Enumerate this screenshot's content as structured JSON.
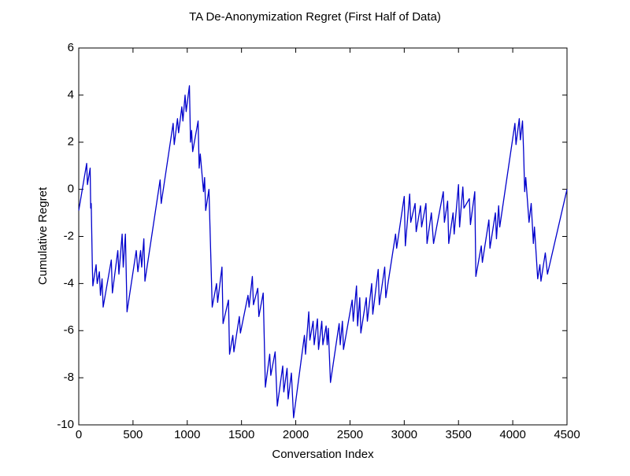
{
  "chart_data": {
    "type": "line",
    "title": "TA De-Anonymization Regret (First Half of Data)",
    "xlabel": "Conversation Index",
    "ylabel": "Cumulative Regret",
    "color": "#0000cc",
    "xlim": [
      0,
      4500
    ],
    "ylim": [
      -10,
      6
    ],
    "xticks": [
      0,
      500,
      1000,
      1500,
      2000,
      2500,
      3000,
      3500,
      4000,
      4500
    ],
    "yticks": [
      -10,
      -8,
      -6,
      -4,
      -2,
      0,
      2,
      4,
      6
    ],
    "x": [
      0,
      73,
      80,
      105,
      110,
      115,
      125,
      130,
      160,
      170,
      190,
      200,
      215,
      225,
      300,
      310,
      360,
      370,
      400,
      410,
      430,
      445,
      530,
      545,
      570,
      580,
      600,
      610,
      750,
      760,
      870,
      880,
      910,
      920,
      950,
      960,
      980,
      990,
      1020,
      1030,
      1040,
      1050,
      1100,
      1110,
      1120,
      1150,
      1160,
      1170,
      1200,
      1230,
      1270,
      1280,
      1320,
      1330,
      1380,
      1390,
      1420,
      1430,
      1480,
      1490,
      1560,
      1570,
      1600,
      1610,
      1650,
      1660,
      1700,
      1720,
      1760,
      1770,
      1810,
      1830,
      1880,
      1890,
      1920,
      1930,
      1960,
      1980,
      2080,
      2090,
      2120,
      2130,
      2160,
      2170,
      2200,
      2210,
      2240,
      2250,
      2280,
      2290,
      2300,
      2320,
      2400,
      2410,
      2430,
      2440,
      2520,
      2530,
      2560,
      2570,
      2590,
      2600,
      2650,
      2660,
      2700,
      2710,
      2760,
      2770,
      2820,
      2830,
      2920,
      2930,
      3000,
      3010,
      3050,
      3060,
      3100,
      3110,
      3150,
      3160,
      3200,
      3210,
      3250,
      3270,
      3360,
      3370,
      3400,
      3410,
      3450,
      3460,
      3500,
      3510,
      3540,
      3550,
      3600,
      3610,
      3650,
      3660,
      3710,
      3720,
      3780,
      3790,
      3840,
      3850,
      3870,
      3880,
      4020,
      4030,
      4060,
      4070,
      4090,
      4100,
      4110,
      4120,
      4150,
      4170,
      4190,
      4200,
      4230,
      4250,
      4260,
      4300,
      4320,
      4500
    ],
    "values": [
      -0.9,
      1.1,
      0.2,
      0.9,
      -0.8,
      -0.6,
      -3.2,
      -4.1,
      -3.2,
      -4.0,
      -3.5,
      -4.5,
      -3.8,
      -5.0,
      -3.0,
      -4.4,
      -2.6,
      -3.6,
      -1.9,
      -3.3,
      -1.9,
      -5.2,
      -2.6,
      -3.5,
      -2.6,
      -3.3,
      -2.1,
      -3.9,
      0.4,
      -0.6,
      2.8,
      1.9,
      3.0,
      2.4,
      3.5,
      2.9,
      4.0,
      3.3,
      4.4,
      2.0,
      2.5,
      1.6,
      2.9,
      0.9,
      1.5,
      -0.1,
      0.5,
      -0.9,
      0.0,
      -5.0,
      -4.0,
      -4.8,
      -3.3,
      -5.7,
      -4.7,
      -7.0,
      -6.2,
      -6.9,
      -5.4,
      -6.1,
      -4.5,
      -5.0,
      -3.7,
      -4.9,
      -4.2,
      -5.4,
      -4.4,
      -8.4,
      -7.0,
      -7.9,
      -6.9,
      -9.2,
      -7.5,
      -8.6,
      -7.6,
      -8.9,
      -7.8,
      -9.7,
      -6.2,
      -7.0,
      -5.2,
      -6.4,
      -5.6,
      -6.6,
      -5.5,
      -6.8,
      -5.6,
      -6.6,
      -5.8,
      -6.6,
      -5.9,
      -8.2,
      -5.7,
      -6.6,
      -5.6,
      -6.8,
      -4.7,
      -5.6,
      -4.1,
      -5.8,
      -4.6,
      -6.1,
      -4.6,
      -5.6,
      -4.0,
      -5.3,
      -3.4,
      -4.9,
      -3.3,
      -4.6,
      -1.9,
      -2.5,
      -0.3,
      -2.4,
      -0.2,
      -1.4,
      -0.6,
      -1.8,
      -0.7,
      -1.6,
      -0.6,
      -2.3,
      -1.0,
      -2.3,
      -0.1,
      -1.4,
      -0.5,
      -2.3,
      -1.0,
      -1.9,
      0.2,
      -1.6,
      0.1,
      -0.8,
      -0.4,
      -1.5,
      -0.1,
      -3.7,
      -2.4,
      -3.1,
      -1.3,
      -2.5,
      -1.0,
      -2.1,
      -0.7,
      -1.6,
      2.8,
      1.9,
      3.0,
      2.1,
      2.9,
      1.6,
      -0.1,
      0.5,
      -1.4,
      -0.6,
      -2.3,
      -1.6,
      -3.8,
      -3.2,
      -3.9,
      -2.7,
      -3.6,
      0.0
    ]
  }
}
